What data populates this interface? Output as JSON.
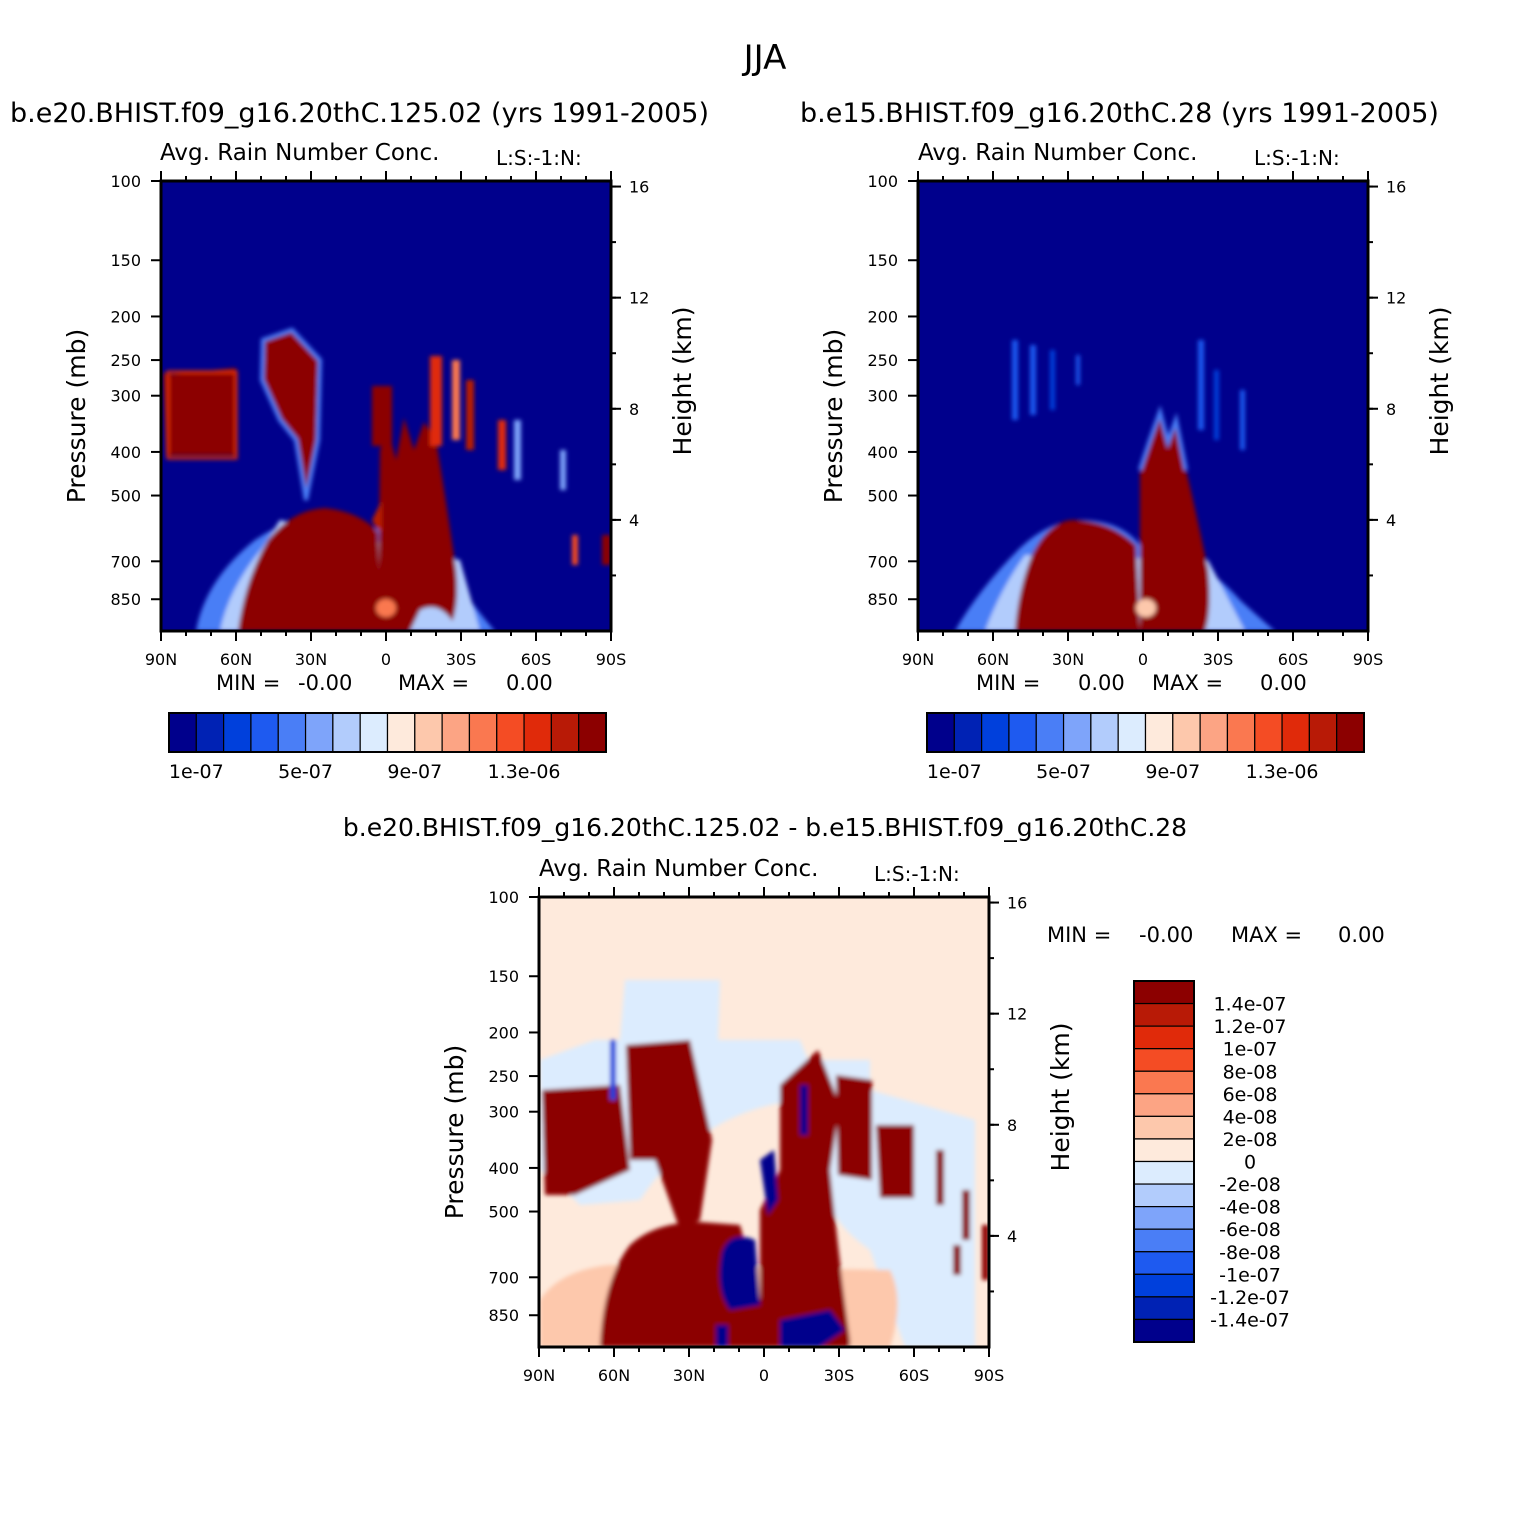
{
  "figure": {
    "title": "JJA"
  },
  "chart_data": [
    {
      "id": "left",
      "type": "heatmap",
      "case_title": "b.e20.BHIST.f09_g16.20thC.125.02 (yrs 1991-2005)",
      "title": "Avg. Rain Number Conc.",
      "corner_label": "L:S:-1:N:",
      "xlabel": "",
      "ylabel": "Pressure (mb)",
      "y2label": "Height (km)",
      "x_ticks": [
        "90N",
        "60N",
        "30N",
        "0",
        "30S",
        "60S",
        "90S"
      ],
      "y_ticks": [
        "100",
        "150",
        "200",
        "250",
        "300",
        "400",
        "500",
        "700",
        "850"
      ],
      "y_tick_values": [
        100,
        150,
        200,
        250,
        300,
        400,
        500,
        700,
        850
      ],
      "y2_ticks": [
        "16",
        "12",
        "8",
        "4"
      ],
      "y2_tick_values": [
        16,
        12,
        8,
        4
      ],
      "min_label": "MIN =",
      "min_value": "-0.00",
      "max_label": "MAX =",
      "max_value": "0.00",
      "colorbar_ticks": [
        "1e-07",
        "5e-07",
        "9e-07",
        "1.3e-06"
      ],
      "colorbar_levels": [
        1e-07,
        2e-07,
        3e-07,
        4e-07,
        5e-07,
        6e-07,
        7e-07,
        8e-07,
        9e-07,
        1e-06,
        1.1e-06,
        1.2e-06,
        1.3e-06,
        1.4e-06
      ]
    },
    {
      "id": "right",
      "type": "heatmap",
      "case_title": "b.e15.BHIST.f09_g16.20thC.28 (yrs 1991-2005)",
      "title": "Avg. Rain Number Conc.",
      "corner_label": "L:S:-1:N:",
      "xlabel": "",
      "ylabel": "Pressure (mb)",
      "y2label": "Height (km)",
      "x_ticks": [
        "90N",
        "60N",
        "30N",
        "0",
        "30S",
        "60S",
        "90S"
      ],
      "y_ticks": [
        "100",
        "150",
        "200",
        "250",
        "300",
        "400",
        "500",
        "700",
        "850"
      ],
      "y_tick_values": [
        100,
        150,
        200,
        250,
        300,
        400,
        500,
        700,
        850
      ],
      "y2_ticks": [
        "16",
        "12",
        "8",
        "4"
      ],
      "y2_tick_values": [
        16,
        12,
        8,
        4
      ],
      "min_label": "MIN =",
      "min_value": "0.00",
      "max_label": "MAX =",
      "max_value": "0.00",
      "colorbar_ticks": [
        "1e-07",
        "5e-07",
        "9e-07",
        "1.3e-06"
      ],
      "colorbar_levels": [
        1e-07,
        2e-07,
        3e-07,
        4e-07,
        5e-07,
        6e-07,
        7e-07,
        8e-07,
        9e-07,
        1e-06,
        1.1e-06,
        1.2e-06,
        1.3e-06,
        1.4e-06
      ]
    },
    {
      "id": "diff",
      "type": "heatmap",
      "case_title": "b.e20.BHIST.f09_g16.20thC.125.02 - b.e15.BHIST.f09_g16.20thC.28",
      "title": "Avg. Rain Number Conc.",
      "corner_label": "L:S:-1:N:",
      "xlabel": "",
      "ylabel": "Pressure (mb)",
      "y2label": "Height (km)",
      "x_ticks": [
        "90N",
        "60N",
        "30N",
        "0",
        "30S",
        "60S",
        "90S"
      ],
      "y_ticks": [
        "100",
        "150",
        "200",
        "250",
        "300",
        "400",
        "500",
        "700",
        "850"
      ],
      "y_tick_values": [
        100,
        150,
        200,
        250,
        300,
        400,
        500,
        700,
        850
      ],
      "y2_ticks": [
        "16",
        "12",
        "8",
        "4"
      ],
      "y2_tick_values": [
        16,
        12,
        8,
        4
      ],
      "min_label": "MIN =",
      "min_value": "-0.00",
      "max_label": "MAX =",
      "max_value": "0.00",
      "colorbar_ticks": [
        "1.4e-07",
        "1.2e-07",
        "1e-07",
        "8e-08",
        "6e-08",
        "4e-08",
        "2e-08",
        "0",
        "-2e-08",
        "-4e-08",
        "-6e-08",
        "-8e-08",
        "-1e-07",
        "-1.2e-07",
        "-1.4e-07"
      ]
    }
  ],
  "colors": {
    "seq": [
      "#00008c",
      "#0022b4",
      "#0040dc",
      "#1e5af0",
      "#4a7ef6",
      "#7ea4fa",
      "#b2ccfc",
      "#dcecfe",
      "#feeadc",
      "#fdc8ac",
      "#fca484",
      "#fa7850",
      "#f44c24",
      "#e02a0a",
      "#b81a06",
      "#8c0000"
    ],
    "div": [
      "#8c0000",
      "#b81a06",
      "#e02a0a",
      "#f44c24",
      "#fa7850",
      "#fca484",
      "#fdc8ac",
      "#feeadc",
      "#dcecfe",
      "#b2ccfc",
      "#7ea4fa",
      "#4a7ef6",
      "#1e5af0",
      "#0040dc",
      "#0022b4",
      "#00008c"
    ]
  }
}
